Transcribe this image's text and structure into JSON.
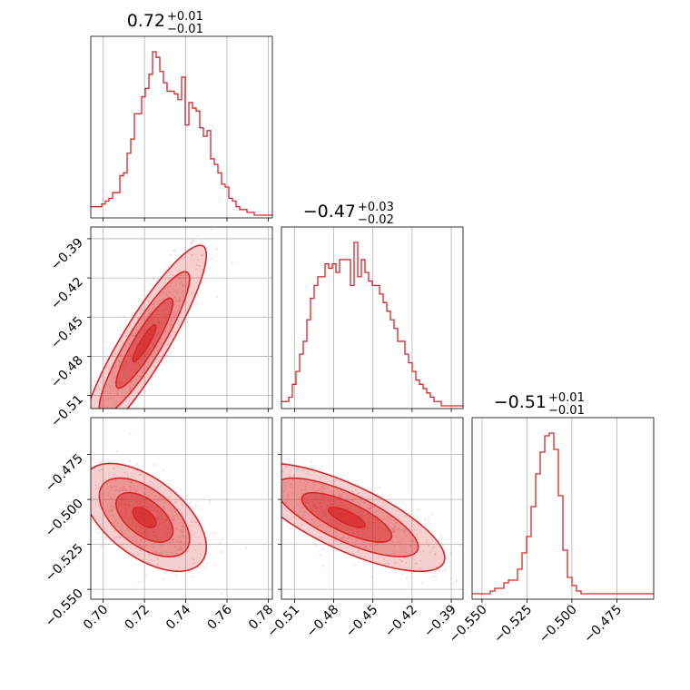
{
  "chart_data": {
    "type": "corner",
    "color": "#d62728",
    "parameters": [
      {
        "range": [
          0.694,
          0.782
        ],
        "ticks": [
          0.7,
          0.72,
          0.74,
          0.76,
          0.78
        ],
        "tick_labels": [
          "0.70",
          "0.72",
          "0.74",
          "0.76",
          "0.78"
        ],
        "title": {
          "median": "0.72",
          "plus": "+0.01",
          "minus": "−0.01"
        }
      },
      {
        "range": [
          -0.52,
          -0.381
        ],
        "ticks": [
          -0.51,
          -0.48,
          -0.45,
          -0.42,
          -0.39
        ],
        "tick_labels": [
          "−0.51",
          "−0.48",
          "−0.45",
          "−0.42",
          "−0.39"
        ],
        "title": {
          "median": "−0.47",
          "plus": "+0.03",
          "minus": "−0.02"
        }
      },
      {
        "range": [
          -0.5555,
          -0.4545
        ],
        "ticks": [
          -0.55,
          -0.525,
          -0.5,
          -0.475
        ],
        "tick_labels": [
          "−0.550",
          "−0.525",
          "−0.500",
          "−0.475"
        ],
        "title": {
          "median": "−0.51",
          "plus": "+0.01",
          "minus": "−0.01"
        }
      }
    ],
    "histograms": [
      {
        "x_start": 0.694,
        "x_end": 0.782,
        "counts": [
          3,
          3,
          3,
          4,
          5,
          6,
          8,
          8,
          14,
          15,
          22,
          27,
          36,
          36,
          42,
          45,
          50,
          58,
          56,
          51,
          47,
          44,
          44,
          43,
          41,
          49,
          32,
          40,
          38,
          37,
          31,
          28,
          30,
          20,
          18,
          15,
          11,
          10,
          6,
          5,
          3,
          2,
          2,
          1,
          1,
          0,
          0,
          0,
          0,
          0
        ]
      },
      {
        "x_start": -0.52,
        "x_end": -0.381,
        "counts": [
          1,
          1,
          2,
          5,
          8,
          12,
          15,
          20,
          25,
          28,
          30,
          30,
          33,
          32,
          33,
          31,
          34,
          34,
          34,
          28,
          38,
          30,
          34,
          31,
          29,
          28,
          28,
          26,
          24,
          22,
          20,
          18,
          15,
          15,
          12,
          10,
          8,
          6,
          5,
          4,
          3,
          2,
          1,
          1,
          0,
          0,
          0,
          0,
          0,
          0
        ]
      },
      {
        "x_start": -0.5555,
        "x_end": -0.4545,
        "counts": [
          1,
          1,
          1,
          1,
          2,
          3,
          3,
          5,
          6,
          6,
          10,
          16,
          22,
          33,
          45,
          53,
          59,
          60,
          54,
          37,
          17,
          7,
          4,
          2,
          1,
          1,
          1,
          1,
          1,
          1,
          1,
          1,
          1,
          1,
          1,
          1,
          1,
          1,
          1,
          1
        ]
      }
    ],
    "correlations": {
      "p1_p0": 0.9,
      "p2_p0": -0.55,
      "p2_p1": -0.75
    },
    "grid": true
  }
}
